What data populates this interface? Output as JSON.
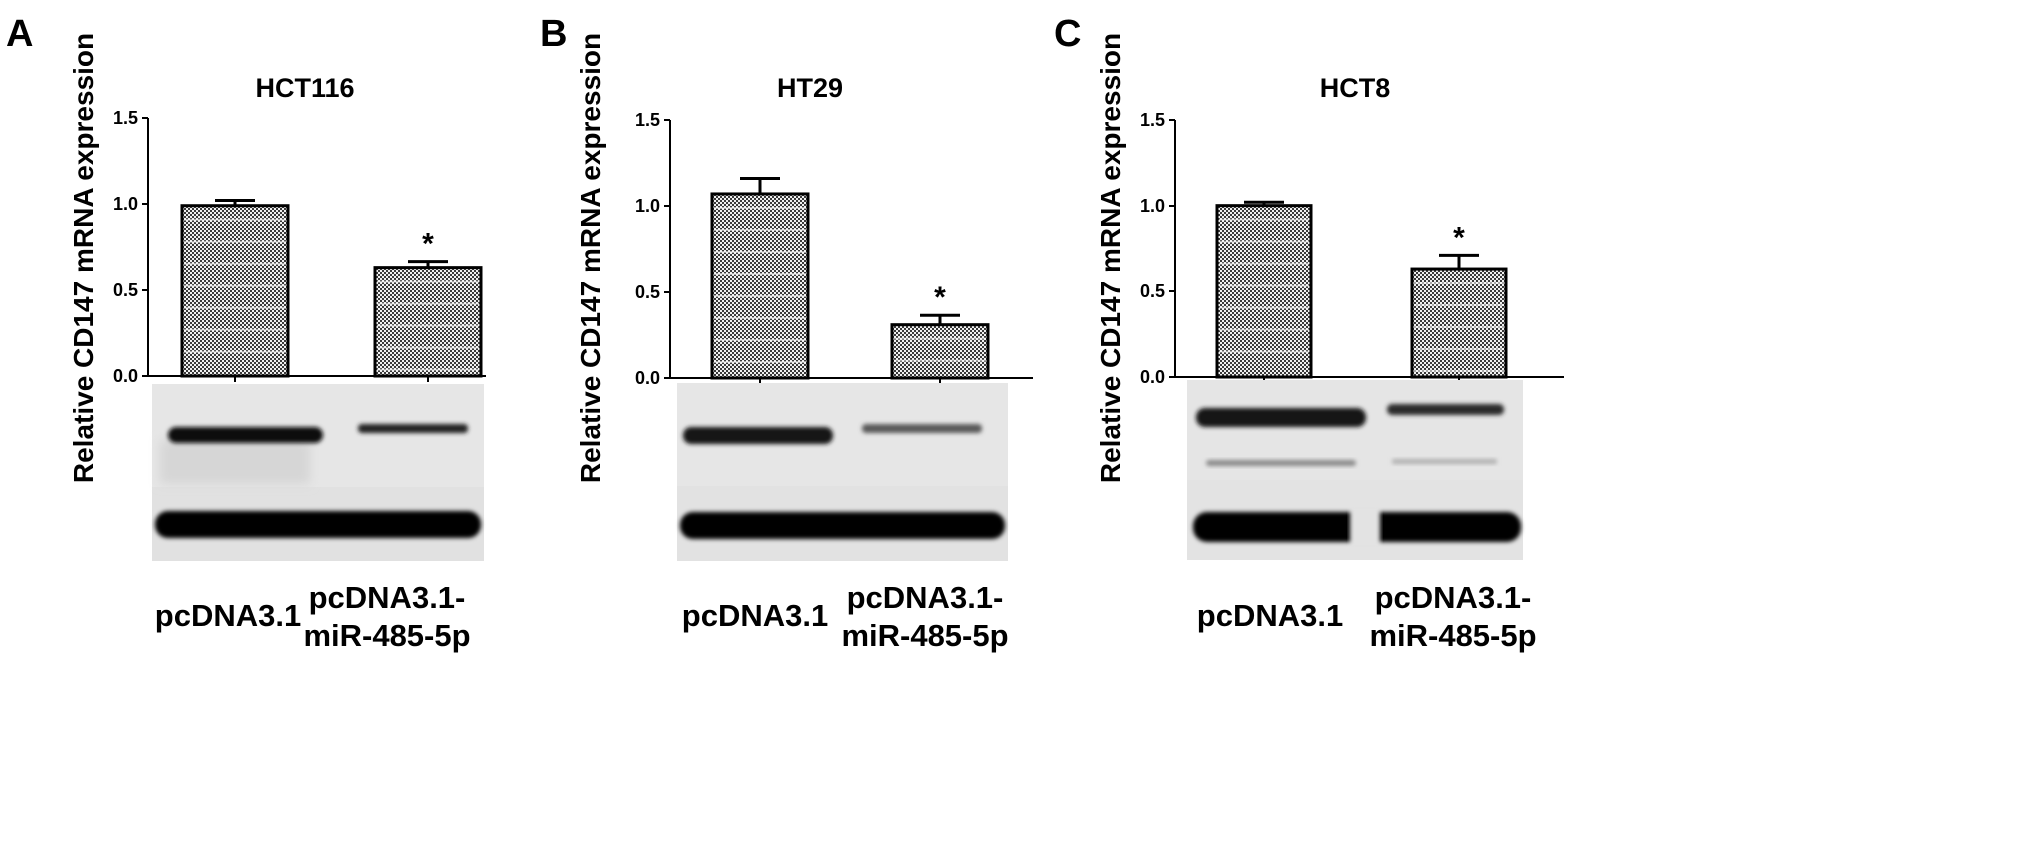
{
  "figure": {
    "lane_labels": [
      "pcDNA3.1",
      "pcDNA3.1-",
      "miR-485-5p"
    ]
  },
  "chart_data": [
    {
      "panel": "A",
      "type": "bar",
      "title": "HCT116",
      "ylabel": "Relative CD147 mRNA expression",
      "ylim": [
        0,
        1.5
      ],
      "yticks": [
        "0.0",
        "0.5",
        "1.0",
        "1.5"
      ],
      "categories": [
        "pcDNA3.1",
        "pcDNA3.1-miR-485-5p"
      ],
      "values": [
        0.99,
        0.63
      ],
      "errors": [
        0.03,
        0.035
      ],
      "significance": [
        "",
        "*"
      ],
      "grid": false,
      "bar_color": "#333333"
    },
    {
      "panel": "B",
      "type": "bar",
      "title": "HT29",
      "ylabel": "Relative CD147 mRNA expression",
      "ylim": [
        0,
        1.5
      ],
      "yticks": [
        "0.0",
        "0.5",
        "1.0",
        "1.5"
      ],
      "categories": [
        "pcDNA3.1",
        "pcDNA3.1-miR-485-5p"
      ],
      "values": [
        1.07,
        0.31
      ],
      "errors": [
        0.09,
        0.055
      ],
      "significance": [
        "",
        "*"
      ],
      "grid": false,
      "bar_color": "#333333"
    },
    {
      "panel": "C",
      "type": "bar",
      "title": "HCT8",
      "ylabel": "Relative CD147 mRNA expression",
      "ylim": [
        0,
        1.5
      ],
      "yticks": [
        "0.0",
        "0.5",
        "1.0",
        "1.5"
      ],
      "categories": [
        "pcDNA3.1",
        "pcDNA3.1-miR-485-5p"
      ],
      "values": [
        1.0,
        0.63
      ],
      "errors": [
        0.02,
        0.08
      ],
      "significance": [
        "",
        "*"
      ],
      "grid": false,
      "bar_color": "#333333"
    }
  ]
}
